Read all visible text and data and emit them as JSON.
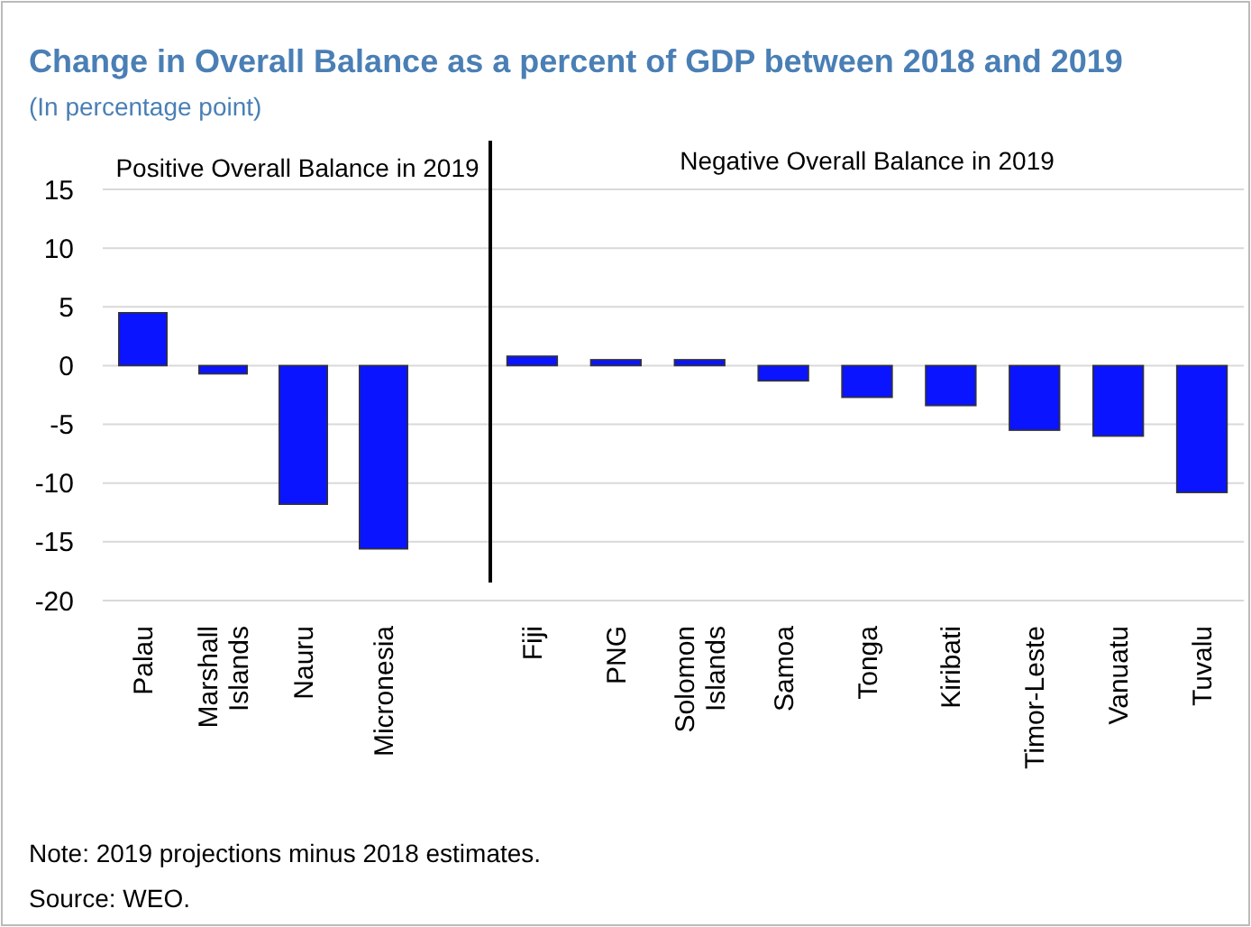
{
  "chart_data": [
    {
      "type": "bar",
      "title": "Change in Overall Balance as a percent of GDP between 2018 and 2019",
      "subtitle": "(In percentage point)",
      "categories": [
        "Palau",
        "Marshall Islands",
        "Nauru",
        "Micronesia"
      ],
      "values": [
        4.5,
        -0.7,
        -11.8,
        -15.6
      ],
      "color": "#0a14ff",
      "ylim": [
        -20,
        15
      ],
      "yticks": [
        -20,
        -15,
        -10,
        -5,
        0,
        5,
        10,
        15
      ],
      "grid": "y",
      "annotations": [
        "Positive Overall Balance in 2019",
        "Note: 2019 projections minus 2018 estimates.",
        "Source: WEO."
      ]
    },
    {
      "type": "bar",
      "categories": [
        "Fiji",
        "PNG",
        "Solomon Islands",
        "Samoa",
        "Tonga",
        "Kiribati",
        "Timor-Leste",
        "Vanuatu",
        "Tuvalu"
      ],
      "values": [
        0.8,
        0.5,
        0.5,
        -1.3,
        -2.7,
        -3.4,
        -5.5,
        -6.0,
        -10.8
      ],
      "color": "#0a14ff",
      "ylim": [
        -20,
        15
      ],
      "yticks": [
        -20,
        -15,
        -10,
        -5,
        0,
        5,
        10,
        15
      ],
      "grid": "y",
      "tick_labels": "x",
      "annotations": [
        "Negative Overall Balance in 2019"
      ]
    }
  ]
}
